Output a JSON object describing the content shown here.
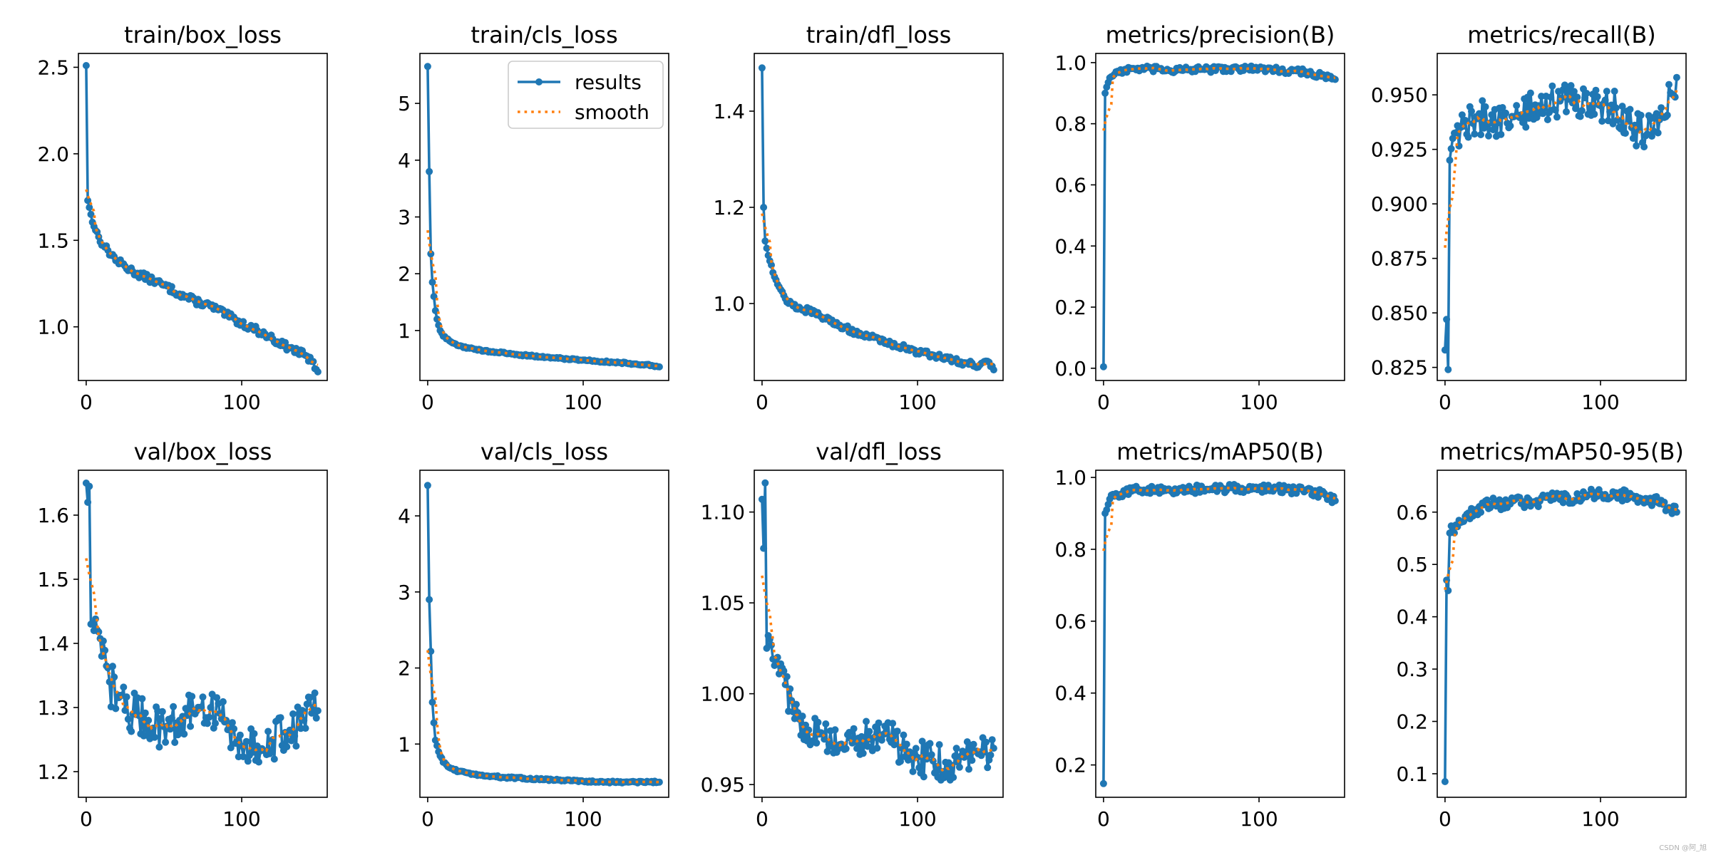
{
  "legend": {
    "results_label": "results",
    "smooth_label": "smooth",
    "position": "upper right of train/cls_loss"
  },
  "colors": {
    "results": "#1f77b4",
    "smooth": "#ff7f0e"
  },
  "watermark": "CSDN @阿_旭",
  "chart_data": [
    {
      "type": "line",
      "title": "train/box_loss",
      "xlim": [
        -5,
        155
      ],
      "ylim": [
        0.69,
        2.58
      ],
      "xticks": [
        0,
        100
      ],
      "yticks": [
        1.0,
        1.5,
        2.0,
        2.5
      ],
      "ytick_labels": [
        "1.0",
        "1.5",
        "2.0",
        "2.5"
      ],
      "anchors": [
        [
          0,
          2.51
        ],
        [
          1,
          1.73
        ],
        [
          3,
          1.65
        ],
        [
          5,
          1.58
        ],
        [
          8,
          1.52
        ],
        [
          12,
          1.46
        ],
        [
          20,
          1.38
        ],
        [
          30,
          1.32
        ],
        [
          40,
          1.28
        ],
        [
          50,
          1.24
        ],
        [
          60,
          1.19
        ],
        [
          70,
          1.15
        ],
        [
          80,
          1.12
        ],
        [
          90,
          1.07
        ],
        [
          100,
          1.02
        ],
        [
          110,
          0.98
        ],
        [
          120,
          0.93
        ],
        [
          130,
          0.88
        ],
        [
          140,
          0.84
        ],
        [
          145,
          0.8
        ],
        [
          149,
          0.74
        ]
      ],
      "noise": 0.02,
      "legend": false
    },
    {
      "type": "line",
      "title": "train/cls_loss",
      "xlim": [
        -5,
        155
      ],
      "ylim": [
        0.12,
        5.88
      ],
      "xticks": [
        0,
        100
      ],
      "yticks": [
        1,
        2,
        3,
        4,
        5
      ],
      "ytick_labels": [
        "1",
        "2",
        "3",
        "4",
        "5"
      ],
      "anchors": [
        [
          0,
          5.65
        ],
        [
          1,
          3.8
        ],
        [
          2,
          2.35
        ],
        [
          3,
          1.85
        ],
        [
          4,
          1.6
        ],
        [
          5,
          1.35
        ],
        [
          6,
          1.2
        ],
        [
          8,
          1.0
        ],
        [
          10,
          0.9
        ],
        [
          15,
          0.8
        ],
        [
          20,
          0.73
        ],
        [
          30,
          0.67
        ],
        [
          40,
          0.63
        ],
        [
          50,
          0.6
        ],
        [
          60,
          0.57
        ],
        [
          80,
          0.52
        ],
        [
          100,
          0.48
        ],
        [
          120,
          0.44
        ],
        [
          140,
          0.4
        ],
        [
          149,
          0.36
        ]
      ],
      "noise": 0.015,
      "legend": true
    },
    {
      "type": "line",
      "title": "train/dfl_loss",
      "xlim": [
        -5,
        155
      ],
      "ylim": [
        0.84,
        1.52
      ],
      "xticks": [
        0,
        100
      ],
      "yticks": [
        1.0,
        1.2,
        1.4
      ],
      "ytick_labels": [
        "1.0",
        "1.2",
        "1.4"
      ],
      "anchors": [
        [
          0,
          1.49
        ],
        [
          1,
          1.2
        ],
        [
          2,
          1.13
        ],
        [
          4,
          1.1
        ],
        [
          6,
          1.08
        ],
        [
          10,
          1.04
        ],
        [
          15,
          1.01
        ],
        [
          20,
          0.995
        ],
        [
          30,
          0.985
        ],
        [
          40,
          0.97
        ],
        [
          50,
          0.955
        ],
        [
          60,
          0.94
        ],
        [
          70,
          0.93
        ],
        [
          80,
          0.92
        ],
        [
          90,
          0.91
        ],
        [
          100,
          0.9
        ],
        [
          110,
          0.893
        ],
        [
          120,
          0.885
        ],
        [
          130,
          0.877
        ],
        [
          140,
          0.872
        ],
        [
          145,
          0.88
        ],
        [
          149,
          0.862
        ]
      ],
      "noise": 0.006,
      "legend": false
    },
    {
      "type": "line",
      "title": "metrics/precision(B)",
      "xlim": [
        -5,
        155
      ],
      "ylim": [
        -0.04,
        1.03
      ],
      "xticks": [
        0,
        100
      ],
      "yticks": [
        0.0,
        0.2,
        0.4,
        0.6,
        0.8,
        1.0
      ],
      "ytick_labels": [
        "0.0",
        "0.2",
        "0.4",
        "0.6",
        "0.8",
        "1.0"
      ],
      "anchors": [
        [
          0,
          0.005
        ],
        [
          1,
          0.9
        ],
        [
          2,
          0.92
        ],
        [
          4,
          0.95
        ],
        [
          8,
          0.97
        ],
        [
          20,
          0.98
        ],
        [
          50,
          0.975
        ],
        [
          80,
          0.98
        ],
        [
          100,
          0.98
        ],
        [
          130,
          0.97
        ],
        [
          145,
          0.95
        ],
        [
          149,
          0.945
        ]
      ],
      "noise": 0.01,
      "legend": false
    },
    {
      "type": "line",
      "title": "metrics/recall(B)",
      "xlim": [
        -5,
        155
      ],
      "ylim": [
        0.819,
        0.969
      ],
      "xticks": [
        0,
        100
      ],
      "yticks": [
        0.825,
        0.85,
        0.875,
        0.9,
        0.925,
        0.95
      ],
      "ytick_labels": [
        "0.825",
        "0.850",
        "0.875",
        "0.900",
        "0.925",
        "0.950"
      ],
      "anchors": [
        [
          0,
          0.833
        ],
        [
          1,
          0.847
        ],
        [
          2,
          0.824
        ],
        [
          3,
          0.92
        ],
        [
          5,
          0.93
        ],
        [
          10,
          0.935
        ],
        [
          20,
          0.94
        ],
        [
          40,
          0.937
        ],
        [
          60,
          0.945
        ],
        [
          80,
          0.948
        ],
        [
          100,
          0.945
        ],
        [
          110,
          0.944
        ],
        [
          120,
          0.935
        ],
        [
          130,
          0.932
        ],
        [
          140,
          0.94
        ],
        [
          149,
          0.958
        ]
      ],
      "noise": 0.008,
      "legend": false
    },
    {
      "type": "line",
      "title": "val/box_loss",
      "xlim": [
        -5,
        155
      ],
      "ylim": [
        1.16,
        1.67
      ],
      "xticks": [
        0,
        100
      ],
      "yticks": [
        1.2,
        1.3,
        1.4,
        1.5,
        1.6
      ],
      "ytick_labels": [
        "1.2",
        "1.3",
        "1.4",
        "1.5",
        "1.6"
      ],
      "anchors": [
        [
          0,
          1.65
        ],
        [
          1,
          1.62
        ],
        [
          2,
          1.645
        ],
        [
          3,
          1.43
        ],
        [
          5,
          1.42
        ],
        [
          10,
          1.38
        ],
        [
          15,
          1.34
        ],
        [
          20,
          1.32
        ],
        [
          30,
          1.29
        ],
        [
          40,
          1.28
        ],
        [
          50,
          1.27
        ],
        [
          60,
          1.28
        ],
        [
          70,
          1.29
        ],
        [
          80,
          1.3
        ],
        [
          90,
          1.28
        ],
        [
          100,
          1.24
        ],
        [
          110,
          1.24
        ],
        [
          120,
          1.25
        ],
        [
          130,
          1.26
        ],
        [
          140,
          1.28
        ],
        [
          149,
          1.295
        ]
      ],
      "noise": 0.035,
      "legend": false
    },
    {
      "type": "line",
      "title": "val/cls_loss",
      "xlim": [
        -5,
        155
      ],
      "ylim": [
        0.3,
        4.6
      ],
      "xticks": [
        0,
        100
      ],
      "yticks": [
        1,
        2,
        3,
        4
      ],
      "ytick_labels": [
        "1",
        "2",
        "3",
        "4"
      ],
      "anchors": [
        [
          0,
          4.4
        ],
        [
          1,
          2.9
        ],
        [
          2,
          2.22
        ],
        [
          3,
          1.55
        ],
        [
          4,
          1.28
        ],
        [
          5,
          1.05
        ],
        [
          7,
          0.9
        ],
        [
          10,
          0.76
        ],
        [
          15,
          0.68
        ],
        [
          20,
          0.64
        ],
        [
          30,
          0.6
        ],
        [
          50,
          0.56
        ],
        [
          80,
          0.53
        ],
        [
          100,
          0.51
        ],
        [
          120,
          0.5
        ],
        [
          149,
          0.5
        ]
      ],
      "noise": 0.012,
      "legend": false
    },
    {
      "type": "line",
      "title": "val/dfl_loss",
      "xlim": [
        -5,
        155
      ],
      "ylim": [
        0.943,
        1.123
      ],
      "xticks": [
        0,
        100
      ],
      "yticks": [
        0.95,
        1.0,
        1.05,
        1.1
      ],
      "ytick_labels": [
        "0.95",
        "1.00",
        "1.05",
        "1.10"
      ],
      "anchors": [
        [
          0,
          1.107
        ],
        [
          1,
          1.08
        ],
        [
          2,
          1.116
        ],
        [
          3,
          1.025
        ],
        [
          5,
          1.03
        ],
        [
          10,
          1.02
        ],
        [
          15,
          1.005
        ],
        [
          20,
          0.99
        ],
        [
          30,
          0.98
        ],
        [
          40,
          0.975
        ],
        [
          50,
          0.972
        ],
        [
          60,
          0.975
        ],
        [
          70,
          0.975
        ],
        [
          80,
          0.978
        ],
        [
          90,
          0.97
        ],
        [
          100,
          0.965
        ],
        [
          110,
          0.963
        ],
        [
          120,
          0.962
        ],
        [
          130,
          0.965
        ],
        [
          140,
          0.968
        ],
        [
          149,
          0.97
        ]
      ],
      "noise": 0.01,
      "legend": false
    },
    {
      "type": "line",
      "title": "metrics/mAP50(B)",
      "xlim": [
        -5,
        155
      ],
      "ylim": [
        0.11,
        1.02
      ],
      "xticks": [
        0,
        100
      ],
      "yticks": [
        0.2,
        0.4,
        0.6,
        0.8,
        1.0
      ],
      "ytick_labels": [
        "0.2",
        "0.4",
        "0.6",
        "0.8",
        "1.0"
      ],
      "anchors": [
        [
          0,
          0.148
        ],
        [
          1,
          0.9
        ],
        [
          2,
          0.91
        ],
        [
          4,
          0.94
        ],
        [
          8,
          0.955
        ],
        [
          20,
          0.965
        ],
        [
          50,
          0.965
        ],
        [
          80,
          0.97
        ],
        [
          100,
          0.97
        ],
        [
          120,
          0.965
        ],
        [
          140,
          0.955
        ],
        [
          149,
          0.935
        ]
      ],
      "noise": 0.012,
      "legend": false
    },
    {
      "type": "line",
      "title": "metrics/mAP50-95(B)",
      "xlim": [
        -5,
        155
      ],
      "ylim": [
        0.055,
        0.68
      ],
      "xticks": [
        0,
        100
      ],
      "yticks": [
        0.1,
        0.2,
        0.3,
        0.4,
        0.5,
        0.6
      ],
      "ytick_labels": [
        "0.1",
        "0.2",
        "0.3",
        "0.4",
        "0.5",
        "0.6"
      ],
      "anchors": [
        [
          0,
          0.085
        ],
        [
          1,
          0.47
        ],
        [
          2,
          0.45
        ],
        [
          3,
          0.56
        ],
        [
          5,
          0.57
        ],
        [
          10,
          0.58
        ],
        [
          20,
          0.605
        ],
        [
          30,
          0.615
        ],
        [
          50,
          0.62
        ],
        [
          70,
          0.625
        ],
        [
          90,
          0.63
        ],
        [
          100,
          0.635
        ],
        [
          120,
          0.63
        ],
        [
          140,
          0.615
        ],
        [
          149,
          0.6
        ]
      ],
      "noise": 0.012,
      "legend": false
    }
  ]
}
